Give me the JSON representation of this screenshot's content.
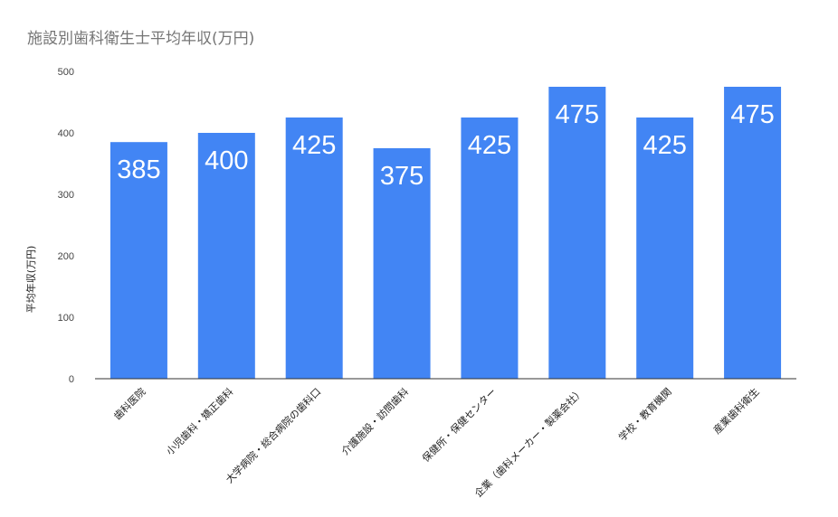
{
  "chart_data": {
    "type": "bar",
    "title": "施設別歯科衛生士平均年収(万円)",
    "ylabel": "平均年収(万円)",
    "xlabel": "",
    "ylim": [
      0,
      500
    ],
    "yticks": [
      0,
      100,
      200,
      300,
      400,
      500
    ],
    "grid": false,
    "legend": "none",
    "bar_color": "#4285f4",
    "categories": [
      "歯科医院",
      "小児歯科・矯正歯科",
      "大学病院・総合病院の歯科口",
      "介護施設・訪問歯科",
      "保健所・保健センター",
      "企業（歯科メーカー・製薬会社）",
      "学校・教育機関",
      "産業歯科衛生"
    ],
    "values": [
      385,
      400,
      425,
      375,
      425,
      475,
      425,
      475
    ]
  }
}
